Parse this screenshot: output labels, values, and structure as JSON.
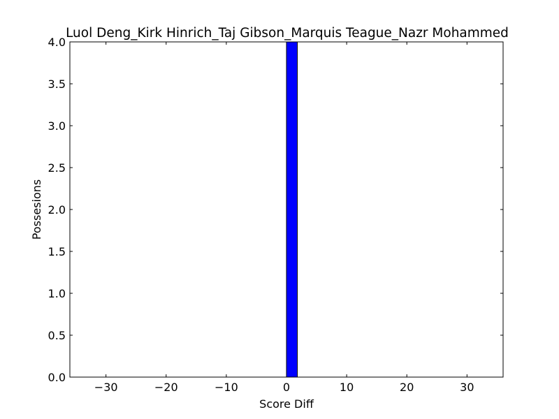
{
  "chart_data": {
    "type": "bar",
    "title": "Luol Deng_Kirk Hinrich_Taj Gibson_Marquis Teague_Nazr Mohammed",
    "xlabel": "Score Diff",
    "ylabel": "Possesions",
    "xlim": [
      -36,
      36
    ],
    "ylim": [
      0,
      4
    ],
    "x_ticks": [
      -30,
      -20,
      -10,
      0,
      10,
      20,
      30
    ],
    "x_tick_labels": [
      "−30",
      "−20",
      "−10",
      "0",
      "10",
      "20",
      "30"
    ],
    "y_ticks": [
      0,
      0.5,
      1,
      1.5,
      2,
      2.5,
      3,
      3.5,
      4
    ],
    "y_tick_labels": [
      "0.0",
      "0.5",
      "1.0",
      "1.5",
      "2.0",
      "2.5",
      "3.0",
      "3.5",
      "4.0"
    ],
    "bar_width": 1.8,
    "bars": [
      {
        "x": 0,
        "value": 4
      }
    ],
    "bar_color": "#0000ff",
    "grid": false,
    "legend": "none"
  }
}
